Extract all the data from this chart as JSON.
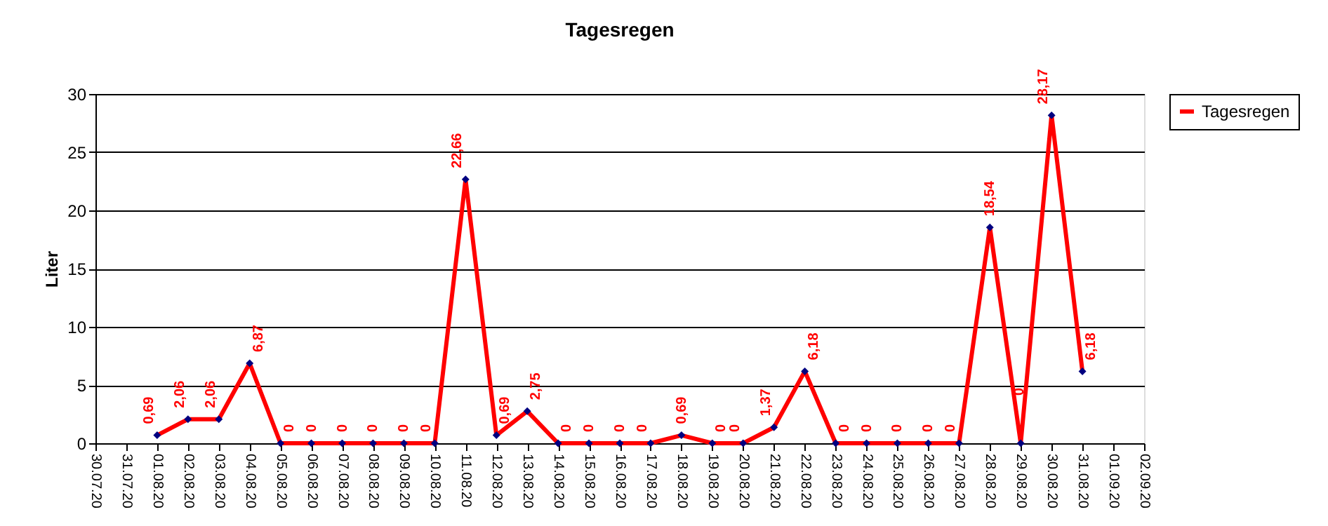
{
  "chart_data": {
    "type": "line",
    "title": "Tagesregen",
    "ylabel": "Liter",
    "categories": [
      "30.07.20",
      "31.07.20",
      "01.08.20",
      "02.08.20",
      "03.08.20",
      "04.08.20",
      "05.08.20",
      "06.08.20",
      "07.08.20",
      "08.08.20",
      "09.08.20",
      "10.08.20",
      "11.08.20",
      "12.08.20",
      "13.08.20",
      "14.08.20",
      "15.08.20",
      "16.08.20",
      "17.08.20",
      "18.08.20",
      "19.08.20",
      "20.08.20",
      "21.08.20",
      "22.08.20",
      "23.08.20",
      "24.08.20",
      "25.08.20",
      "26.08.20",
      "27.08.20",
      "28.08.20",
      "29.08.20",
      "30.08.20",
      "31.08.20",
      "01.09.20",
      "02.09.20"
    ],
    "series": [
      {
        "name": "Tagesregen",
        "color": "#ff0000",
        "values": [
          null,
          null,
          0.69,
          2.06,
          2.06,
          6.87,
          0,
          0,
          0,
          0,
          0,
          0,
          22.66,
          0.69,
          2.75,
          0,
          0,
          0,
          0,
          0.69,
          0,
          0,
          1.37,
          6.18,
          0,
          0,
          0,
          0,
          0,
          18.54,
          0,
          28.17,
          6.18,
          null,
          null
        ],
        "value_labels": [
          null,
          null,
          "0,69",
          "2,06",
          "2,06",
          "6,87",
          "0",
          "0",
          "0",
          "0",
          "0",
          "0",
          "22,66",
          "0,69",
          "2,75",
          "0",
          "0",
          "0",
          "0",
          "0,69",
          "0",
          "0",
          "1,37",
          "6,18",
          "0",
          "0",
          "0",
          "0",
          "0",
          "18,54",
          "0",
          "28,17",
          "6,18",
          null,
          null
        ]
      }
    ],
    "ylim": [
      0,
      30
    ],
    "yticks": [
      0,
      5,
      10,
      15,
      20,
      25,
      30
    ],
    "grid": "y",
    "legend": "right",
    "marker": "diamond",
    "line_style": "solid"
  }
}
